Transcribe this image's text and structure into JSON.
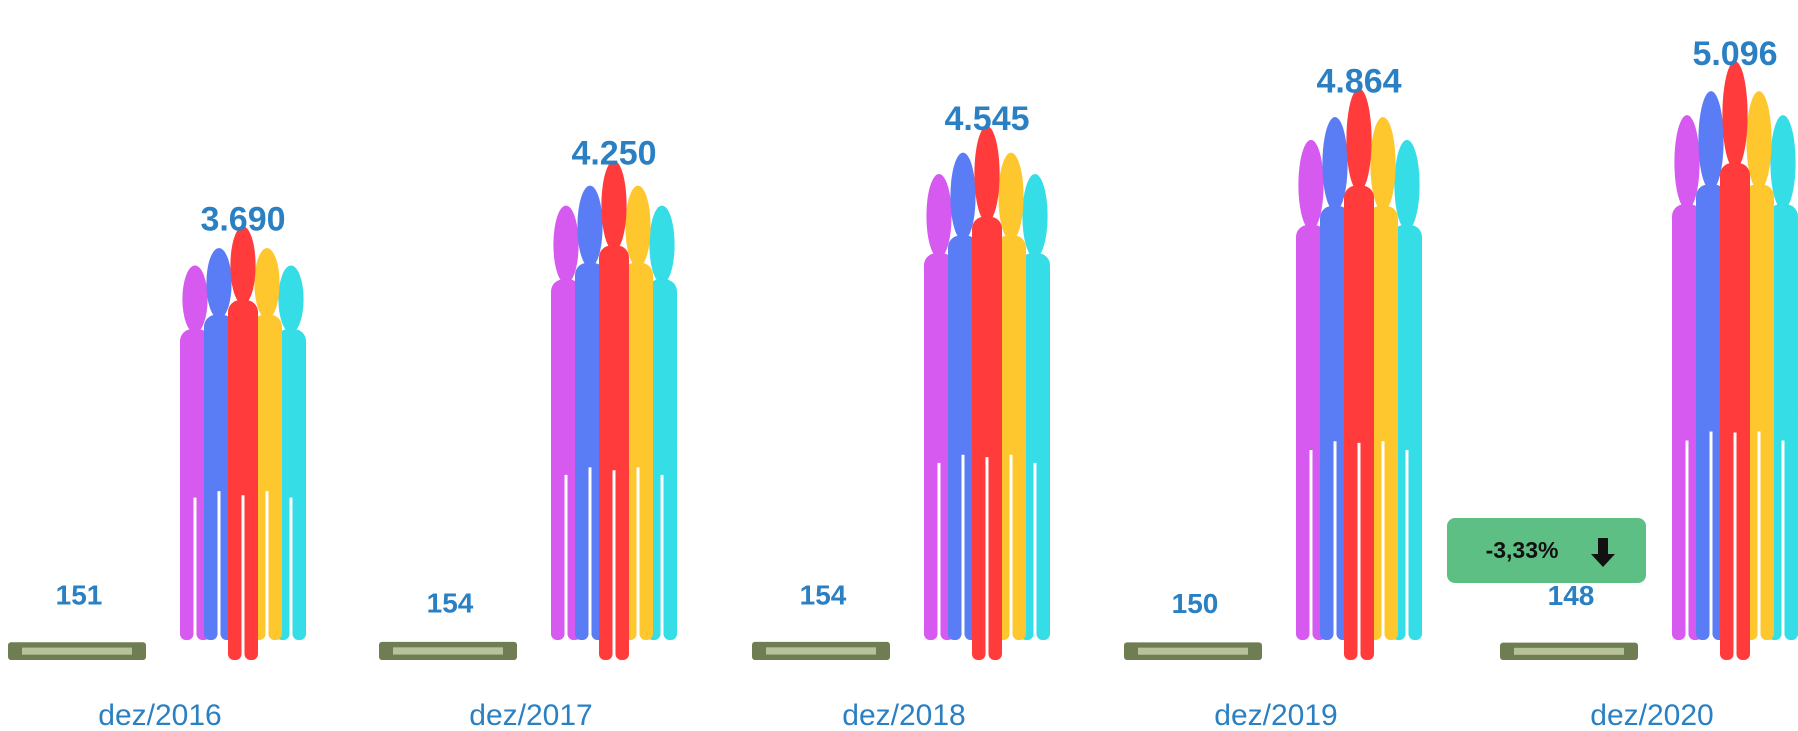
{
  "chart_data": {
    "type": "bar",
    "categories": [
      "dez/2016",
      "dez/2017",
      "dez/2018",
      "dez/2019",
      "dez/2020"
    ],
    "series": [
      {
        "color": "#6f7d52",
        "values": [
          151,
          154,
          154,
          150,
          148
        ]
      },
      {
        "color": "#ff3b3b",
        "values": [
          3690,
          4250,
          4545,
          4864,
          5096
        ],
        "value_labels": [
          "3.690",
          "4.250",
          "4.545",
          "4.864",
          "5.096"
        ]
      }
    ],
    "annotation": "-3,33%"
  }
}
